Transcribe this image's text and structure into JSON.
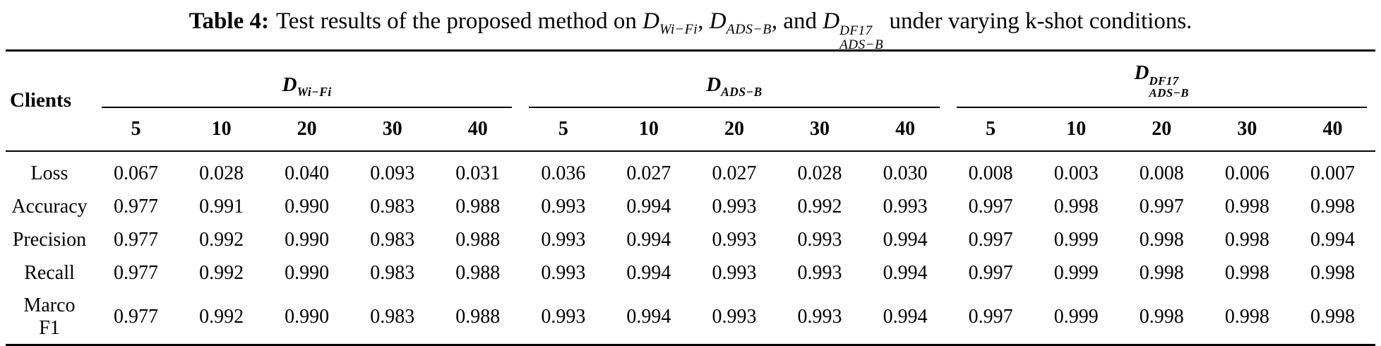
{
  "caption": {
    "tag": "Table 4:",
    "text_before": "Test results of the proposed method on",
    "sep1": ",",
    "sep2": ", and",
    "text_after": "under varying k-shot conditions.",
    "datasets": [
      {
        "base": "D",
        "sup": "",
        "sub": "Wi−Fi"
      },
      {
        "base": "D",
        "sup": "",
        "sub": "ADS−B"
      },
      {
        "base": "D",
        "sup": "DF17",
        "sub": "ADS−B"
      }
    ]
  },
  "table": {
    "corner_label": "Clients",
    "groups": [
      {
        "symbol": {
          "base": "D",
          "sup": "",
          "sub": "Wi−Fi"
        },
        "kshots": [
          "5",
          "10",
          "20",
          "30",
          "40"
        ]
      },
      {
        "symbol": {
          "base": "D",
          "sup": "",
          "sub": "ADS−B"
        },
        "kshots": [
          "5",
          "10",
          "20",
          "30",
          "40"
        ]
      },
      {
        "symbol": {
          "base": "D",
          "sup": "DF17",
          "sub": "ADS−B"
        },
        "kshots": [
          "5",
          "10",
          "20",
          "30",
          "40"
        ]
      }
    ],
    "rows": [
      {
        "label_lines": [
          "Loss"
        ],
        "values": [
          "0.067",
          "0.028",
          "0.040",
          "0.093",
          "0.031",
          "0.036",
          "0.027",
          "0.027",
          "0.028",
          "0.030",
          "0.008",
          "0.003",
          "0.008",
          "0.006",
          "0.007"
        ]
      },
      {
        "label_lines": [
          "Accuracy"
        ],
        "values": [
          "0.977",
          "0.991",
          "0.990",
          "0.983",
          "0.988",
          "0.993",
          "0.994",
          "0.993",
          "0.992",
          "0.993",
          "0.997",
          "0.998",
          "0.997",
          "0.998",
          "0.998"
        ]
      },
      {
        "label_lines": [
          "Precision"
        ],
        "values": [
          "0.977",
          "0.992",
          "0.990",
          "0.983",
          "0.988",
          "0.993",
          "0.994",
          "0.993",
          "0.993",
          "0.994",
          "0.997",
          "0.999",
          "0.998",
          "0.998",
          "0.994"
        ]
      },
      {
        "label_lines": [
          "Recall"
        ],
        "values": [
          "0.977",
          "0.992",
          "0.990",
          "0.983",
          "0.988",
          "0.993",
          "0.994",
          "0.993",
          "0.993",
          "0.994",
          "0.997",
          "0.999",
          "0.998",
          "0.998",
          "0.998"
        ]
      },
      {
        "label_lines": [
          "Marco",
          "F1"
        ],
        "values": [
          "0.977",
          "0.992",
          "0.990",
          "0.983",
          "0.988",
          "0.993",
          "0.994",
          "0.993",
          "0.993",
          "0.994",
          "0.997",
          "0.999",
          "0.998",
          "0.998",
          "0.998"
        ]
      }
    ]
  }
}
